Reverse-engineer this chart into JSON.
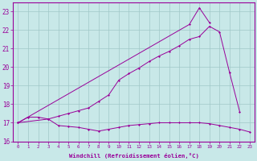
{
  "xlabel": "Windchill (Refroidissement éolien,°C)",
  "color": "#990099",
  "bg_color": "#c8e8e8",
  "grid_color": "#a0c8c8",
  "ylim": [
    16.0,
    23.5
  ],
  "xlim_min": -0.5,
  "xlim_max": 23.5,
  "yticks": [
    16,
    17,
    18,
    19,
    20,
    21,
    22,
    23
  ],
  "xticks": [
    0,
    1,
    2,
    3,
    4,
    5,
    6,
    7,
    8,
    9,
    10,
    11,
    12,
    13,
    14,
    15,
    16,
    17,
    18,
    19,
    20,
    21,
    22,
    23
  ],
  "line1_x": [
    0,
    1,
    2,
    3,
    4,
    5,
    6,
    7,
    8,
    9,
    10,
    11,
    12,
    13,
    14,
    15,
    16,
    17,
    18,
    19,
    20,
    21,
    22,
    23
  ],
  "line1_y": [
    17.0,
    17.3,
    17.3,
    17.2,
    16.85,
    16.8,
    16.75,
    16.65,
    16.55,
    16.65,
    16.75,
    16.85,
    16.9,
    16.95,
    17.0,
    17.0,
    17.0,
    17.0,
    17.0,
    16.95,
    16.85,
    16.75,
    16.65,
    16.5
  ],
  "line2_x": [
    0,
    3,
    4,
    5,
    6,
    7,
    8,
    9,
    10,
    11,
    12,
    13,
    14,
    15,
    16,
    17,
    18,
    19,
    20,
    21,
    22
  ],
  "line2_y": [
    17.0,
    17.2,
    17.35,
    17.5,
    17.65,
    17.8,
    18.15,
    18.5,
    19.3,
    19.65,
    19.95,
    20.3,
    20.6,
    20.85,
    21.15,
    21.5,
    21.65,
    22.2,
    21.9,
    19.7,
    17.6
  ],
  "line3_x": [
    0,
    17,
    18,
    19
  ],
  "line3_y": [
    17.0,
    22.3,
    23.2,
    22.4
  ]
}
